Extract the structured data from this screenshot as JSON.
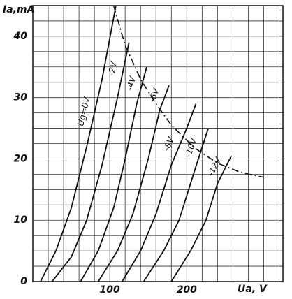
{
  "chart_data": {
    "type": "line",
    "x_label": "Ua, V",
    "y_label": "Ia,mA",
    "xlim": [
      0,
      325
    ],
    "ylim": [
      0,
      45
    ],
    "xticks": [
      100,
      200
    ],
    "yticks": [
      0,
      10,
      20,
      30,
      40
    ],
    "grid": true,
    "xgrid_step": 20,
    "ygrid_step": 2.5,
    "series": [
      {
        "name": "Ug=0V",
        "color": "#111111",
        "x": [
          10,
          30,
          50,
          70,
          90,
          108
        ],
        "values": [
          0,
          5,
          12,
          22,
          33,
          45
        ]
      },
      {
        "name": "-2V",
        "color": "#111111",
        "x": [
          25,
          50,
          70,
          90,
          110,
          125
        ],
        "values": [
          0,
          4,
          10,
          19,
          30,
          39
        ]
      },
      {
        "name": "-4V",
        "color": "#111111",
        "x": [
          62,
          85,
          105,
          120,
          135,
          148
        ],
        "values": [
          0,
          5,
          12,
          20,
          29,
          35
        ]
      },
      {
        "name": "-6V",
        "color": "#111111",
        "x": [
          85,
          110,
          130,
          150,
          165,
          177
        ],
        "values": [
          0,
          5,
          11,
          20,
          28,
          32
        ]
      },
      {
        "name": "-8V",
        "color": "#111111",
        "x": [
          116,
          140,
          160,
          180,
          200,
          212
        ],
        "values": [
          0,
          5,
          11,
          19,
          25,
          29
        ]
      },
      {
        "name": "-10V",
        "color": "#111111",
        "x": [
          144,
          170,
          190,
          210,
          228
        ],
        "values": [
          0,
          5,
          10,
          18,
          25
        ]
      },
      {
        "name": "-12V",
        "color": "#111111",
        "x": [
          180,
          205,
          225,
          240,
          258
        ],
        "values": [
          0,
          5,
          10,
          16,
          20.5
        ]
      },
      {
        "color": "#111111",
        "dashed": true,
        "x": [
          105,
          120,
          140,
          160,
          180,
          210,
          240,
          270,
          300
        ],
        "values": [
          45,
          38.5,
          33,
          29,
          25.5,
          21.8,
          19.3,
          17.8,
          17
        ]
      }
    ]
  }
}
